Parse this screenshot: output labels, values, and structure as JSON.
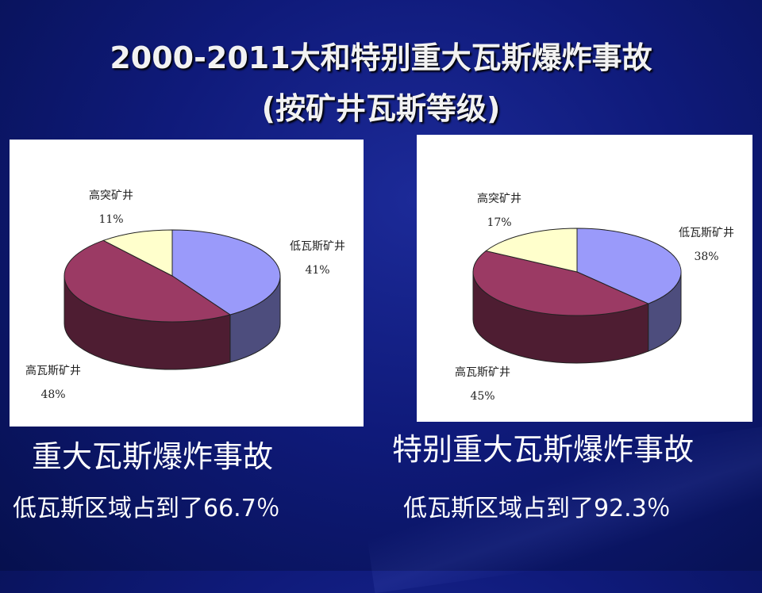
{
  "slide": {
    "title_line1": "2000-2011大和特别重大瓦斯爆炸事故",
    "title_line2": "(按矿井瓦斯等级)"
  },
  "captions": {
    "left_heading": "重大瓦斯爆炸事故",
    "left_note": "低瓦斯区域占到了66.7％",
    "right_heading": "特别重大瓦斯爆炸事故",
    "right_note": "低瓦斯区域占到了92.3％"
  },
  "chart_data": [
    {
      "type": "pie",
      "style": "3d",
      "title": "",
      "slices": [
        {
          "name": "低瓦斯矿井",
          "value": 41,
          "label": "41%",
          "color": "#9a9afa"
        },
        {
          "name": "高瓦斯矿井",
          "value": 48,
          "label": "48%",
          "color": "#9b3a64"
        },
        {
          "name": "高突矿井",
          "value": 11,
          "label": "11%",
          "color": "#ffffcc"
        }
      ]
    },
    {
      "type": "pie",
      "style": "3d",
      "title": "",
      "slices": [
        {
          "name": "低瓦斯矿井",
          "value": 38,
          "label": "38%",
          "color": "#9a9afa"
        },
        {
          "name": "高瓦斯矿井",
          "value": 45,
          "label": "45%",
          "color": "#9b3a64"
        },
        {
          "name": "高突矿井",
          "value": 17,
          "label": "17%",
          "color": "#ffffcc"
        }
      ]
    }
  ]
}
